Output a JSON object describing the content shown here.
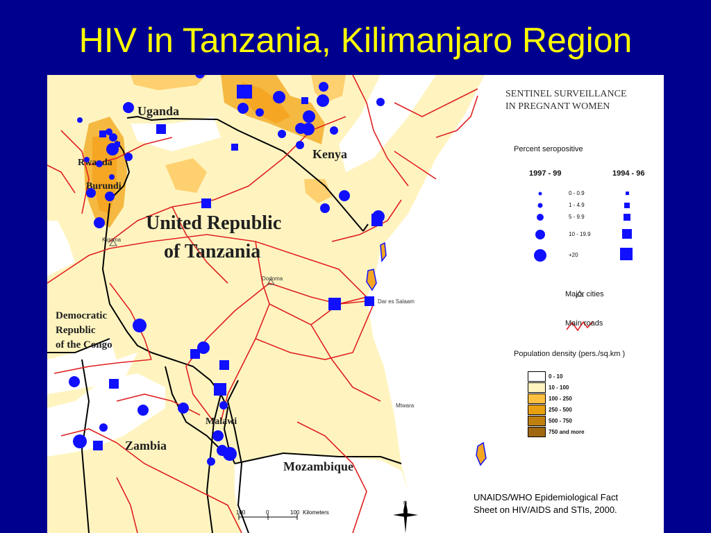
{
  "title": "HIV in Tanzania, Kilimanjaro Region",
  "map": {
    "countries": {
      "uganda": "Uganda",
      "kenya": "Kenya",
      "rwanda": "Rwanda",
      "burundi": "Burundi",
      "tanzania_line1": "United Republic",
      "tanzania_line2": "of Tanzania",
      "drc_line1": "Democratic",
      "drc_line2": "Republic",
      "drc_line3": "of the Congo",
      "zambia": "Zambia",
      "malawi": "Malawi",
      "mozambique": "Mozambique"
    },
    "cities": {
      "kigoma": "Kigoma",
      "dodoma": "Dodoma",
      "dar": "Dar es Salaam",
      "mtwara": "Mtwara"
    },
    "colors": {
      "water": "#ffffff",
      "land_low": "#fff4c0",
      "land_mid": "#ffd070",
      "land_high": "#f5a623",
      "road": "#e02020",
      "marker": "#1010ff"
    }
  },
  "legend": {
    "heading_line1": "SENTINEL SURVEILLANCE",
    "heading_line2": "IN PREGNANT WOMEN",
    "percent_title": "Percent seropositive",
    "period_a": "1997 - 99",
    "period_b": "1994 - 96",
    "classes": [
      "0 - 0.9",
      "1 - 4.9",
      "5 - 9.9",
      "10 - 19.9",
      "+20"
    ],
    "major_cities": "Major cities",
    "main_roads": "Main roads",
    "density_title": "Population density (pers./sq.km )",
    "density_classes": [
      {
        "label": "0 - 10",
        "color": "#ffffff"
      },
      {
        "label": "10 - 100",
        "color": "#fff4c0"
      },
      {
        "label": "100 - 250",
        "color": "#ffc040"
      },
      {
        "label": "250 - 500",
        "color": "#e8a010"
      },
      {
        "label": "500 - 750",
        "color": "#c08010"
      },
      {
        "label": "750 and more",
        "color": "#a06810"
      }
    ]
  },
  "scale": {
    "ticks": [
      "100",
      "0",
      "100"
    ],
    "unit": "Kilometers"
  },
  "source": {
    "line1": "UNAIDS/WHO Epidemiological Fact",
    "line2": "Sheet on HIV/AIDS and STIs, 2000."
  }
}
